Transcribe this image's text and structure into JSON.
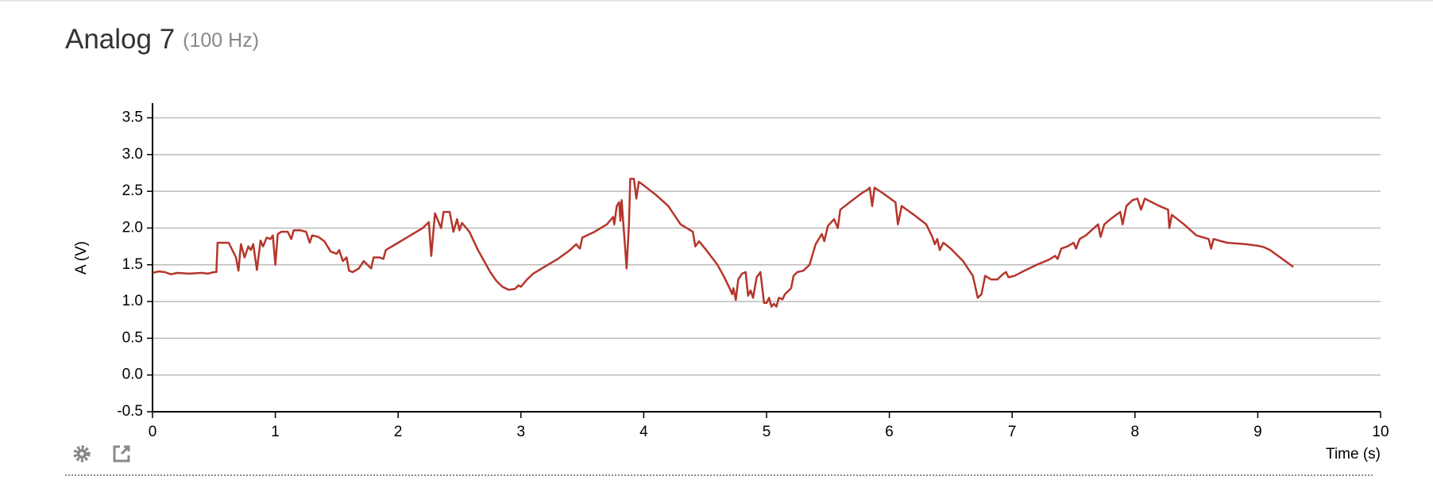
{
  "chart_data": {
    "type": "line",
    "title": "Analog 7",
    "subtitle": "(100 Hz)",
    "xlabel": "Time (s)",
    "ylabel": "A (V)",
    "color": "#b5352a",
    "grid": true,
    "xlim": [
      0,
      10
    ],
    "xticks": [
      0,
      1,
      2,
      3,
      4,
      5,
      6,
      7,
      8,
      9,
      10
    ],
    "ylim": [
      -0.5,
      3.7
    ],
    "yticks": [
      -0.5,
      {
        "value": 0,
        "label": "0.0"
      },
      0.5,
      {
        "value": 1,
        "label": "1.0"
      },
      1.5,
      {
        "value": 2,
        "label": "2.0"
      },
      2.5,
      {
        "value": 3,
        "label": "3.0"
      },
      3.5
    ],
    "x": [
      0,
      0.05,
      0.1,
      0.15,
      0.2,
      0.3,
      0.4,
      0.45,
      0.5,
      0.52,
      0.53,
      0.6,
      0.62,
      0.68,
      0.7,
      0.72,
      0.75,
      0.78,
      0.8,
      0.82,
      0.85,
      0.88,
      0.9,
      0.93,
      0.96,
      0.98,
      1.0,
      1.02,
      1.05,
      1.1,
      1.13,
      1.15,
      1.2,
      1.25,
      1.28,
      1.3,
      1.35,
      1.4,
      1.45,
      1.5,
      1.52,
      1.55,
      1.58,
      1.6,
      1.63,
      1.68,
      1.72,
      1.78,
      1.8,
      1.85,
      1.88,
      1.9,
      2.0,
      2.1,
      2.2,
      2.25,
      2.27,
      2.3,
      2.35,
      2.37,
      2.42,
      2.45,
      2.48,
      2.5,
      2.52,
      2.58,
      2.65,
      2.75,
      2.8,
      2.85,
      2.9,
      2.95,
      2.98,
      3.0,
      3.05,
      3.1,
      3.2,
      3.3,
      3.4,
      3.45,
      3.48,
      3.5,
      3.6,
      3.7,
      3.75,
      3.76,
      3.78,
      3.8,
      3.81,
      3.82,
      3.83,
      3.85,
      3.86,
      3.88,
      3.89,
      3.92,
      3.94,
      3.96,
      4.0,
      4.1,
      4.2,
      4.3,
      4.4,
      4.42,
      4.45,
      4.5,
      4.6,
      4.65,
      4.7,
      4.72,
      4.73,
      4.75,
      4.77,
      4.8,
      4.83,
      4.85,
      4.87,
      4.89,
      4.92,
      4.95,
      4.98,
      5.0,
      5.02,
      5.04,
      5.06,
      5.08,
      5.1,
      5.13,
      5.15,
      5.2,
      5.22,
      5.25,
      5.3,
      5.35,
      5.4,
      5.45,
      5.47,
      5.5,
      5.55,
      5.58,
      5.6,
      5.7,
      5.78,
      5.82,
      5.84,
      5.86,
      5.88,
      5.95,
      6.05,
      6.07,
      6.1,
      6.2,
      6.3,
      6.35,
      6.37,
      6.39,
      6.41,
      6.44,
      6.5,
      6.6,
      6.68,
      6.7,
      6.72,
      6.75,
      6.78,
      6.83,
      6.88,
      6.93,
      6.95,
      6.97,
      7.02,
      7.1,
      7.2,
      7.3,
      7.35,
      7.37,
      7.4,
      7.45,
      7.5,
      7.52,
      7.55,
      7.6,
      7.7,
      7.72,
      7.75,
      7.8,
      7.88,
      7.9,
      7.93,
      7.98,
      8.02,
      8.05,
      8.08,
      8.2,
      8.27,
      8.28,
      8.3,
      8.4,
      8.5,
      8.6,
      8.62,
      8.64,
      8.75,
      8.9,
      9.0,
      9.05,
      9.1,
      9.2,
      9.29
    ],
    "values": [
      1.39,
      1.41,
      1.4,
      1.37,
      1.39,
      1.38,
      1.39,
      1.38,
      1.4,
      1.4,
      1.8,
      1.8,
      1.8,
      1.6,
      1.42,
      1.78,
      1.6,
      1.75,
      1.7,
      1.78,
      1.43,
      1.83,
      1.75,
      1.87,
      1.85,
      1.9,
      1.5,
      1.92,
      1.95,
      1.95,
      1.85,
      1.97,
      1.97,
      1.95,
      1.8,
      1.9,
      1.88,
      1.82,
      1.68,
      1.65,
      1.7,
      1.55,
      1.6,
      1.42,
      1.4,
      1.45,
      1.55,
      1.45,
      1.6,
      1.6,
      1.58,
      1.7,
      1.8,
      1.9,
      2.0,
      2.08,
      1.62,
      2.2,
      2.0,
      2.22,
      2.22,
      1.95,
      2.12,
      1.97,
      2.07,
      1.95,
      1.7,
      1.4,
      1.28,
      1.2,
      1.16,
      1.17,
      1.22,
      1.2,
      1.3,
      1.38,
      1.48,
      1.58,
      1.7,
      1.78,
      1.72,
      1.87,
      1.95,
      2.05,
      2.15,
      2.05,
      2.3,
      2.35,
      2.1,
      2.38,
      2.15,
      1.7,
      1.45,
      2.05,
      2.67,
      2.67,
      2.4,
      2.63,
      2.58,
      2.45,
      2.3,
      2.05,
      1.95,
      1.75,
      1.82,
      1.72,
      1.5,
      1.35,
      1.18,
      1.1,
      1.18,
      1.02,
      1.3,
      1.38,
      1.4,
      1.08,
      1.15,
      1.05,
      1.33,
      1.4,
      0.98,
      0.98,
      1.05,
      0.93,
      0.97,
      0.93,
      1.05,
      1.03,
      1.1,
      1.18,
      1.35,
      1.4,
      1.42,
      1.5,
      1.78,
      1.92,
      1.82,
      2.03,
      2.12,
      2.0,
      2.25,
      2.38,
      2.48,
      2.52,
      2.55,
      2.3,
      2.55,
      2.47,
      2.35,
      2.05,
      2.3,
      2.18,
      2.05,
      1.88,
      1.78,
      1.85,
      1.7,
      1.8,
      1.72,
      1.55,
      1.35,
      1.2,
      1.05,
      1.1,
      1.35,
      1.3,
      1.3,
      1.38,
      1.4,
      1.33,
      1.35,
      1.42,
      1.5,
      1.57,
      1.62,
      1.58,
      1.72,
      1.75,
      1.8,
      1.72,
      1.85,
      1.9,
      2.05,
      1.88,
      2.05,
      2.12,
      2.22,
      2.05,
      2.3,
      2.38,
      2.4,
      2.25,
      2.4,
      2.3,
      2.25,
      2.0,
      2.18,
      2.05,
      1.9,
      1.85,
      1.72,
      1.85,
      1.8,
      1.78,
      1.76,
      1.74,
      1.7,
      1.58,
      1.47
    ]
  }
}
